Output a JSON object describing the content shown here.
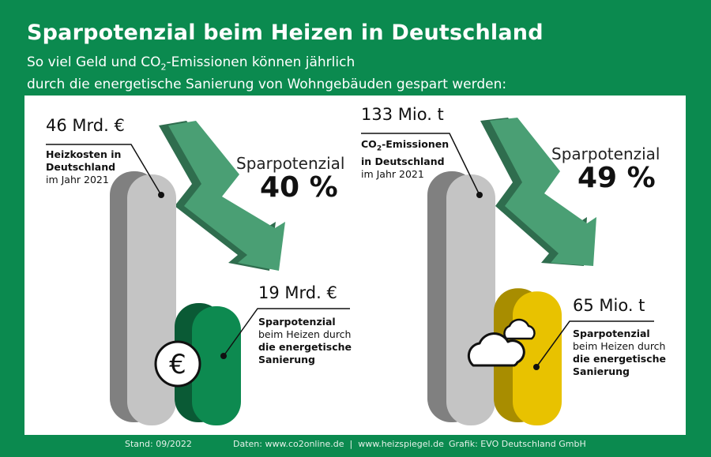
{
  "title": "Sparpotenzial beim Heizen in Deutschland",
  "subtitle": {
    "line1_pre": "So viel Geld und CO",
    "line1_sub": "2",
    "line1_post": "-Emissionen können jährlich",
    "line2": "durch die energetische Sanierung von Wohngebäuden gespart werden:"
  },
  "left": {
    "total_value": "46 Mrd. €",
    "total_desc_bold": "Heizkosten in\nDeutschland",
    "total_desc_year": "im Jahr 2021",
    "savings_label": "Sparpotenzial",
    "savings_percent": "40 %",
    "saved_value": "19 Mrd. €",
    "saved_desc_1": "Sparpotenzial",
    "saved_desc_2": "beim Heizen durch",
    "saved_desc_3": "die energetische",
    "saved_desc_4": "Sanierung",
    "euro_symbol": "€"
  },
  "right": {
    "total_value": "133 Mio. t",
    "total_desc_pre": "CO",
    "total_desc_sub": "2",
    "total_desc_post": "-Emissionen",
    "total_desc_line2": "in Deutschland",
    "total_desc_year": "im Jahr 2021",
    "savings_label": "Sparpotenzial",
    "savings_percent": "49 %",
    "saved_value": "65 Mio. t",
    "saved_desc_1": "Sparpotenzial",
    "saved_desc_2": "beim Heizen durch",
    "saved_desc_3": "die energetische",
    "saved_desc_4": "Sanierung"
  },
  "footer": {
    "stand": "Stand: 09/2022",
    "daten": "Daten: www.co2online.de  |  www.heizspiegel.de",
    "grafik": "Grafik: EVO Deutschland GmbH"
  },
  "colors": {
    "brand_green": "#0b8a4f",
    "grey_bar": "#c4c4c4",
    "green_bar": "#0d8a50",
    "yellow_bar": "#e8c200",
    "arrow": "#4a9f74"
  },
  "chart_data": [
    {
      "type": "bar",
      "title": "Heizkosten in Deutschland",
      "categories": [
        "Heizkosten 2021",
        "Sparpotenzial"
      ],
      "values": [
        46,
        19
      ],
      "unit": "Mrd. €",
      "savings_percent": 40
    },
    {
      "type": "bar",
      "title": "CO2-Emissionen in Deutschland",
      "categories": [
        "CO2-Emissionen 2021",
        "Sparpotenzial"
      ],
      "values": [
        133,
        65
      ],
      "unit": "Mio. t",
      "savings_percent": 49
    }
  ]
}
